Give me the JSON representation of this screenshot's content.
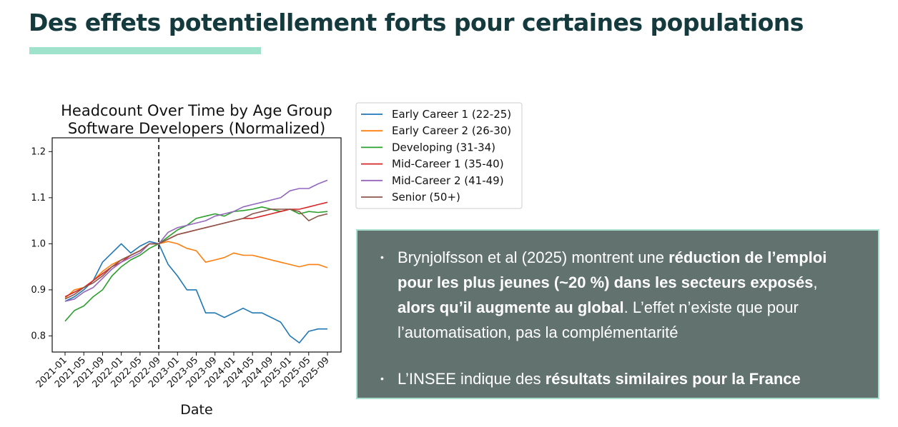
{
  "slide": {
    "title": "Des effets potentiellement forts pour certaines populations",
    "accent_color": "#9fe3cc",
    "title_color": "#153a3e"
  },
  "chart_data": {
    "type": "line",
    "title": "Headcount Over Time by Age Group",
    "subtitle": "Software Developers (Normalized)",
    "xlabel": "Date",
    "ylabel": "",
    "x": [
      "2021-01",
      "2021-03",
      "2021-05",
      "2021-07",
      "2021-09",
      "2021-11",
      "2022-01",
      "2022-03",
      "2022-05",
      "2022-07",
      "2022-09",
      "2022-11",
      "2023-01",
      "2023-03",
      "2023-05",
      "2023-07",
      "2023-09",
      "2023-11",
      "2024-01",
      "2024-03",
      "2024-05",
      "2024-07",
      "2024-09",
      "2024-11",
      "2025-01",
      "2025-03",
      "2025-05",
      "2025-07",
      "2025-09"
    ],
    "x_ticks": [
      "2021-01",
      "2021-05",
      "2021-09",
      "2022-01",
      "2022-05",
      "2022-09",
      "2023-01",
      "2023-05",
      "2023-09",
      "2024-01",
      "2024-05",
      "2024-09",
      "2025-01",
      "2025-05",
      "2025-09"
    ],
    "y_ticks": [
      0.8,
      0.9,
      1.0,
      1.1,
      1.2
    ],
    "ylim": [
      0.765,
      1.23
    ],
    "vline_x": "2022-09",
    "legend_position": "outside-right",
    "grid": false,
    "series": [
      {
        "name": "Early Career 1 (22-25)",
        "color": "#1f77b4",
        "values": [
          0.875,
          0.885,
          0.9,
          0.92,
          0.96,
          0.98,
          1.0,
          0.98,
          0.995,
          1.005,
          1.0,
          0.955,
          0.93,
          0.9,
          0.9,
          0.85,
          0.85,
          0.84,
          0.85,
          0.86,
          0.85,
          0.85,
          0.84,
          0.83,
          0.8,
          0.785,
          0.81,
          0.815,
          0.815
        ]
      },
      {
        "name": "Early Career 2 (26-30)",
        "color": "#ff7f0e",
        "values": [
          0.882,
          0.9,
          0.905,
          0.92,
          0.94,
          0.955,
          0.965,
          0.975,
          0.985,
          1.0,
          1.0,
          1.005,
          1.0,
          0.99,
          0.985,
          0.96,
          0.965,
          0.97,
          0.98,
          0.975,
          0.975,
          0.97,
          0.965,
          0.96,
          0.955,
          0.95,
          0.955,
          0.955,
          0.948
        ]
      },
      {
        "name": "Developing (31-34)",
        "color": "#2ca02c",
        "values": [
          0.832,
          0.855,
          0.865,
          0.885,
          0.9,
          0.93,
          0.95,
          0.965,
          0.975,
          0.99,
          1.0,
          1.015,
          1.03,
          1.04,
          1.055,
          1.06,
          1.065,
          1.06,
          1.07,
          1.072,
          1.075,
          1.08,
          1.075,
          1.07,
          1.075,
          1.065,
          1.07,
          1.068,
          1.07
        ]
      },
      {
        "name": "Mid-Career 1 (35-40)",
        "color": "#d62728",
        "values": [
          0.885,
          0.895,
          0.905,
          0.92,
          0.935,
          0.95,
          0.96,
          0.975,
          0.985,
          1.0,
          1.0,
          1.01,
          1.02,
          1.025,
          1.03,
          1.035,
          1.04,
          1.045,
          1.05,
          1.055,
          1.055,
          1.06,
          1.065,
          1.07,
          1.075,
          1.075,
          1.08,
          1.085,
          1.09
        ]
      },
      {
        "name": "Mid-Career 2 (41-49)",
        "color": "#9467bd",
        "values": [
          0.875,
          0.88,
          0.895,
          0.905,
          0.925,
          0.945,
          0.96,
          0.97,
          0.98,
          1.0,
          1.0,
          1.025,
          1.035,
          1.04,
          1.045,
          1.05,
          1.06,
          1.065,
          1.07,
          1.08,
          1.085,
          1.09,
          1.095,
          1.1,
          1.115,
          1.12,
          1.12,
          1.13,
          1.138
        ]
      },
      {
        "name": "Senior (50+)",
        "color": "#8c564b",
        "values": [
          0.88,
          0.89,
          0.905,
          0.915,
          0.93,
          0.95,
          0.965,
          0.975,
          0.985,
          1.0,
          1.0,
          1.01,
          1.02,
          1.025,
          1.03,
          1.035,
          1.04,
          1.045,
          1.05,
          1.055,
          1.065,
          1.07,
          1.075,
          1.075,
          1.075,
          1.07,
          1.05,
          1.06,
          1.065
        ]
      }
    ]
  },
  "info_box": {
    "background": "#62736f",
    "border_color": "#a7dfcc",
    "bullet_glyph": "•",
    "bullet_1": {
      "t1": "Brynjolfsson et al (2025) montrent une ",
      "b1": "réduction de l’emploi pour les plus jeunes (~20 %) dans les secteurs exposés",
      "t2": ", ",
      "b2": "alors qu’il augmente au global",
      "t3": ". L’effet n’existe que pour l’automatisation, pas la complémentarité"
    },
    "bullet_2": {
      "t1": "L’INSEE indique des ",
      "b1": "résultats similaires pour la France"
    }
  }
}
